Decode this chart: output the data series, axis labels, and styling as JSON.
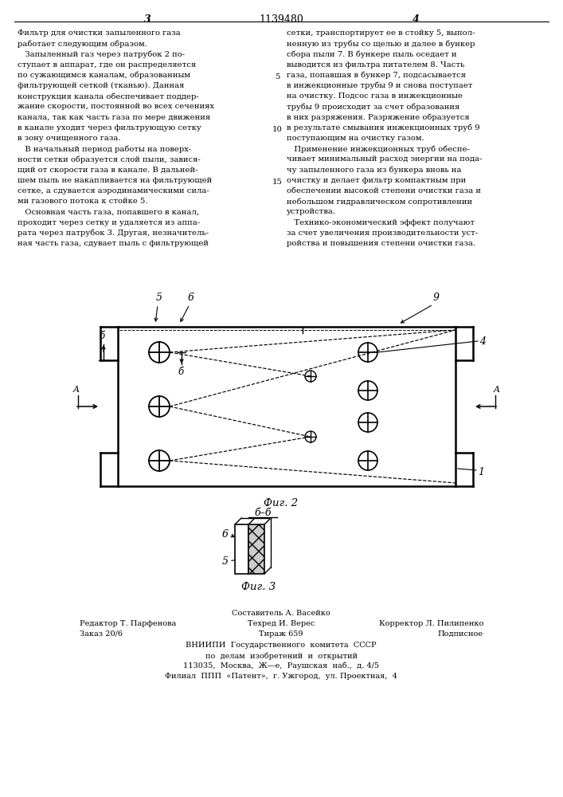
{
  "page_number": "1139480",
  "col_left_num": "3",
  "col_right_num": "4",
  "text_left_col": [
    "Фильтр для очистки запыленного газа",
    "работает следующим образом.",
    "   Запыленный газ через патрубок 2 по-",
    "ступает в аппарат, где он распределяется",
    "по сужающимся каналам, образованным",
    "фильтрующей сеткой (тканью). Данная",
    "конструкция канала обеспечивает поддер-",
    "жание скорости, постоянной во всех сечениях",
    "канала, так как часть газа по мере движения",
    "в канале уходит через фильтрующую сетку",
    "в зону очищенного газа.",
    "   В начальный период работы на поверх-",
    "ности сетки образуется слой пыли, завися-",
    "щий от скорости газа в канале. В дальней-",
    "шем пыль не накапливается на фильтрующей",
    "сетке, а сдувается аэродинамическими сила-",
    "ми газового потока к стойке 5.",
    "   Основная часть газа, попавшего в канал,",
    "проходит через сетку и удаляется из аппа-",
    "рата через патрубок 3. Другая, незначитель-",
    "ная часть газа, сдувает пыль с фильтрующей"
  ],
  "text_right_col": [
    "сетки, транспортирует ее в стойку 5, выпол-",
    "ненную из трубы со щелью и далее в бункер",
    "сбора пыли 7. В бункере пыль оседает и",
    "выводится из фильтра питателем 8. Часть",
    "газа, попавшая в бункер 7, подсасывается",
    "в инжекционные трубы 9 и снова поступает",
    "на очистку. Подсос газа в инжекционные",
    "трубы 9 происходит за счет образования",
    "в них разряжения. Разряжение образуется",
    "в результате смывания инжекционных труб 9",
    "поступающим на очистку газом.",
    "   Применение инжекционных труб обеспе-",
    "чивает минимальный расход энергии на пода-",
    "чу запыленного газа из бункера вновь на",
    "очистку и делает фильтр компактным при",
    "обеспечении высокой степени очистки газа и",
    "небольшом гидравлическом сопротивлении",
    "устройства.",
    "   Технико-экономический эффект получают",
    "за счет увеличения производительности уст-",
    "ройства и повышения степени очистки газа."
  ],
  "fig2_caption": "Фиг. 2",
  "fig3_caption": "Фиг. 3",
  "footer_line1": "Составитель А. Васейко",
  "footer_line2_l": "Редактор Т. Парфенова",
  "footer_line2_c": "Техред И. Верес",
  "footer_line2_r": "Корректор Л. Пилипенко",
  "footer_line3_l": "Заказ 20/6",
  "footer_line3_c": "Тираж 659",
  "footer_line3_r": "Подписное",
  "footer_line4": "ВНИИПИ  Государственного  комитета  СССР",
  "footer_line5": "по  делам  изобретений  и  открытий",
  "footer_line6": "113035,  Москва,  Ж—е,  Раушская  наб.,  д. 4/5",
  "footer_line7": "Филиал  ППП  «Патент»,  г. Ужгород,  ул. Проектная,  4"
}
